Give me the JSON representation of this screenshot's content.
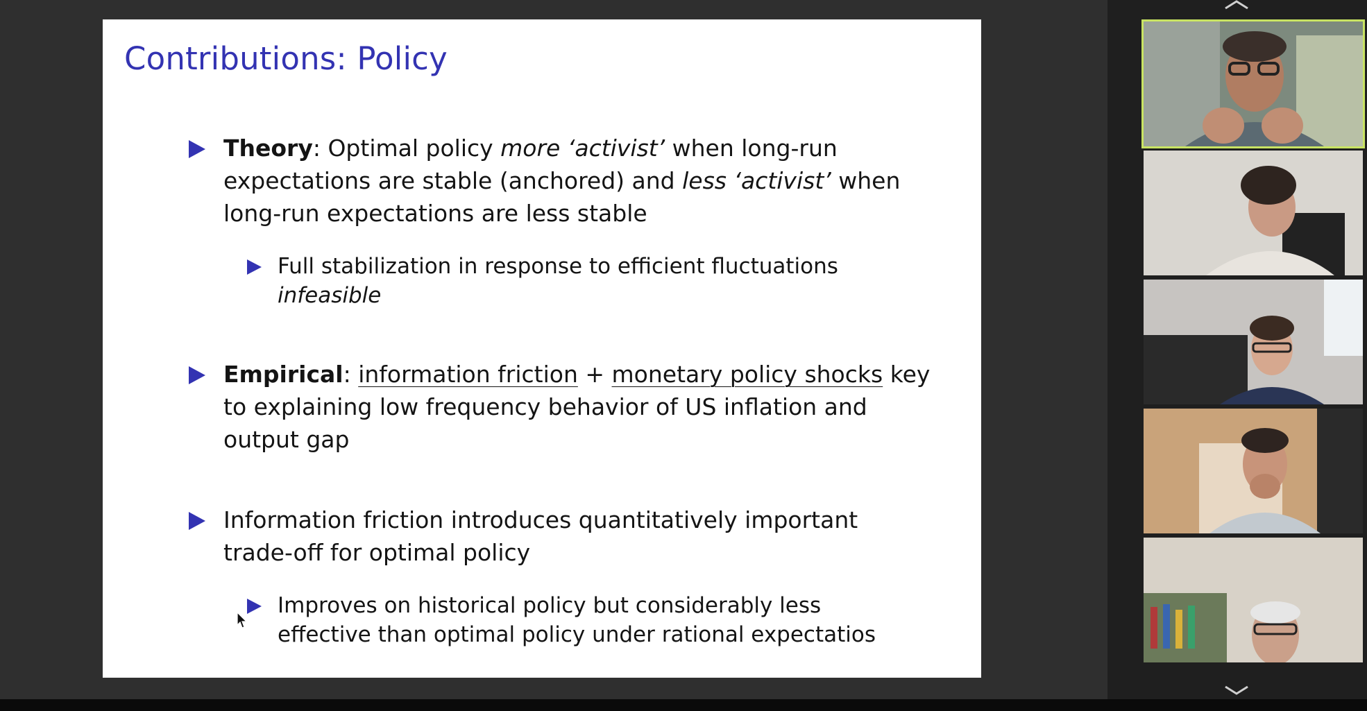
{
  "slide": {
    "title": "Contributions:  Policy",
    "bullets": {
      "theory": {
        "bold": "Theory",
        "colon": ":",
        "text1": " Optimal policy ",
        "ital1": "more ‘activist’",
        "text2": " when long-run expectations are stable (anchored) and ",
        "ital2": "less ‘activist’",
        "text3": " when long-run expectations are less stable",
        "sub": {
          "text": "Full stabilization in response to efficient fluctuations ",
          "ital": "infeasible"
        }
      },
      "empirical": {
        "bold": "Empirical",
        "colon": ": ",
        "ul1": "information friction",
        "plus": " + ",
        "ul2": "monetary policy shocks",
        "text": " key to explaining low frequency behavior of US inflation and output gap"
      },
      "friction": {
        "text": "Information friction introduces quantitatively important trade-off for optimal policy",
        "sub": {
          "text": "Improves on historical policy but considerably less effective than optimal policy under rational expectatios"
        }
      }
    }
  },
  "panel": {
    "up_icon": "chevron-up-icon",
    "down_icon": "chevron-down-icon",
    "active_border_color": "#c9e463",
    "participants": [
      {
        "tile": "participant-1",
        "active": true
      },
      {
        "tile": "participant-2",
        "active": false
      },
      {
        "tile": "participant-3",
        "active": false
      },
      {
        "tile": "participant-4",
        "active": false
      },
      {
        "tile": "participant-5",
        "active": false
      }
    ]
  },
  "colors": {
    "slide_accent": "#3333b2",
    "background": "#2f2f2f"
  }
}
